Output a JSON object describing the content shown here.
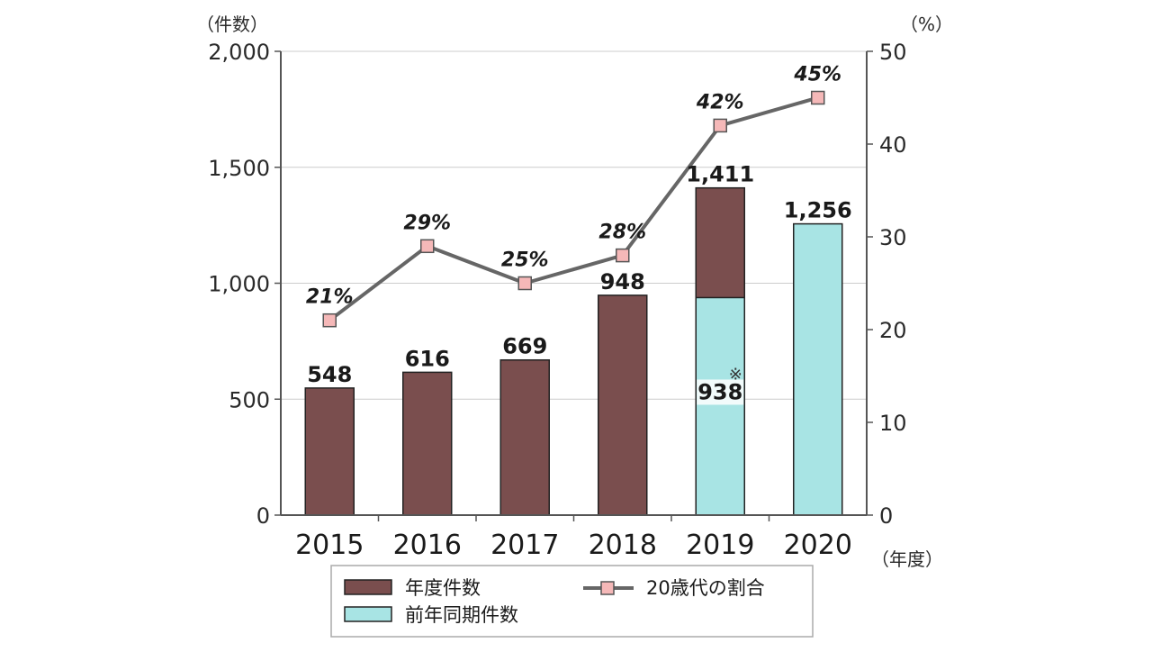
{
  "chart_data": {
    "type": "bar",
    "categories": [
      "2015",
      "2016",
      "2017",
      "2018",
      "2019",
      "2020"
    ],
    "xlabel": "（年度）",
    "ylabel": "（件数）",
    "ylabel_right": "（%）",
    "ylim": [
      0,
      2000
    ],
    "ylim_right": [
      0,
      50
    ],
    "yticks": [
      "0",
      "500",
      "1,000",
      "1,500",
      "2,000"
    ],
    "yticks_right": [
      "0",
      "10",
      "20",
      "30",
      "40",
      "50"
    ],
    "grid": true,
    "legend_position": "bottom",
    "series": [
      {
        "name": "年度件数",
        "type": "bar",
        "color": "#7a4e4e",
        "values": [
          548,
          616,
          669,
          948,
          1411,
          null
        ],
        "labels": [
          "548",
          "616",
          "669",
          "948",
          "1,411",
          ""
        ]
      },
      {
        "name": "前年同期件数",
        "type": "bar",
        "color": "#a8e4e4",
        "values": [
          null,
          null,
          null,
          null,
          938,
          1256
        ],
        "labels": [
          "",
          "",
          "",
          "",
          "938",
          "1,256"
        ]
      },
      {
        "name": "20歳代の割合",
        "type": "line",
        "axis": "right",
        "color": "#666666",
        "marker_color": "#f5b8b8",
        "values": [
          21,
          29,
          25,
          28,
          42,
          45
        ],
        "labels": [
          "21%",
          "29%",
          "25%",
          "28%",
          "42%",
          "45%"
        ]
      }
    ],
    "annotations": [
      {
        "text": "※",
        "category": "2019"
      }
    ]
  }
}
